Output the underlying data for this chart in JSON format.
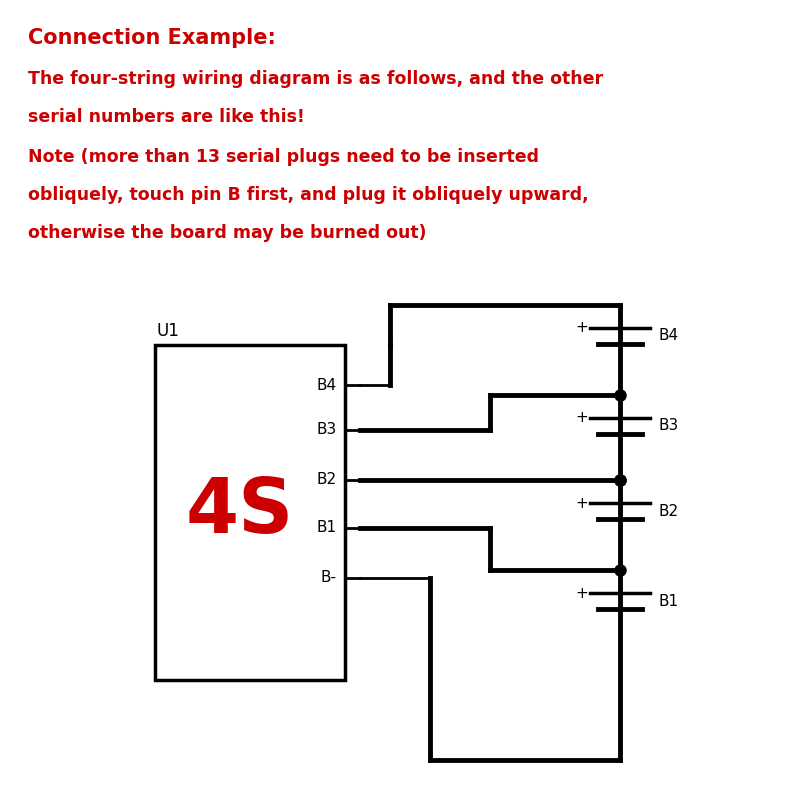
{
  "title": "Connection Example:",
  "text1": "The four-string wiring diagram is as follows, and the other",
  "text2": "serial numbers are like this!",
  "text3": "Note (more than 13 serial plugs need to be inserted",
  "text4": "obliquely, touch pin B first, and plug it obliquely upward,",
  "text5": "otherwise the board may be burned out)",
  "title_color": "#cc0000",
  "text_color": "#cc0000",
  "diagram_color": "#000000",
  "bg_color": "#ffffff",
  "label_4s_color": "#cc0000",
  "box_label": "U1",
  "big_label": "4S",
  "pin_labels": [
    "B4",
    "B3",
    "B2",
    "B1",
    "B-"
  ],
  "bat_names": [
    "B4",
    "B3",
    "B2",
    "B1"
  ]
}
